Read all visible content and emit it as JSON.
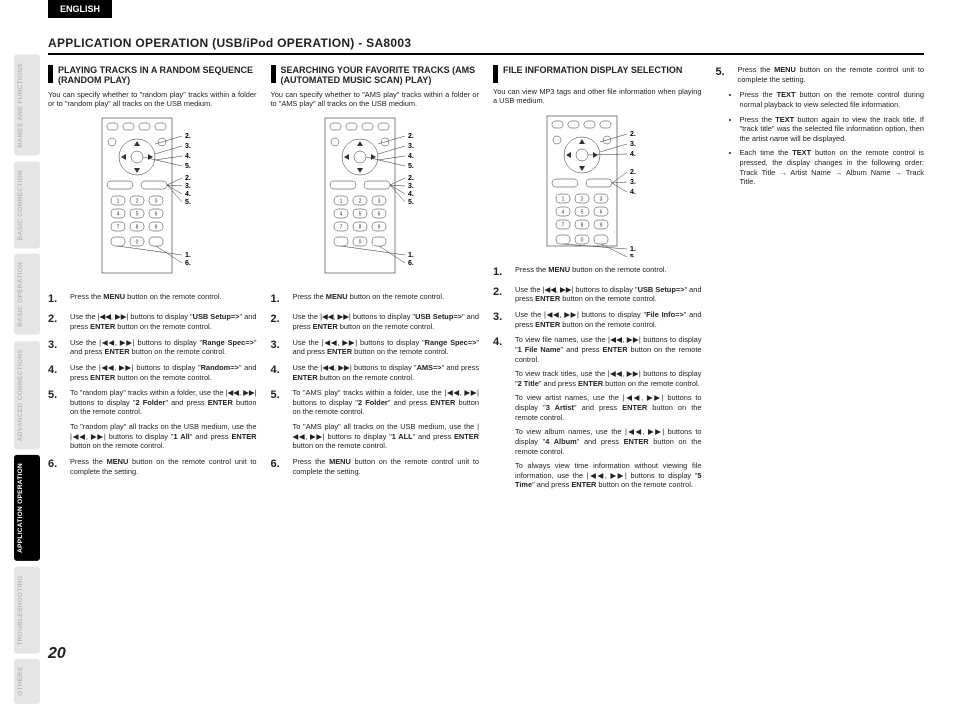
{
  "lang": "ENGLISH",
  "pageNum": "20",
  "sidebar": [
    {
      "label": "NAMES AND FUNCTIONS",
      "active": false
    },
    {
      "label": "BASIC CONNECTION",
      "active": false
    },
    {
      "label": "BASIC OPERATION",
      "active": false
    },
    {
      "label": "ADVANCED CONNECTIONS",
      "active": false
    },
    {
      "label": "APPLICATION OPERATION",
      "active": true
    },
    {
      "label": "TROUBLESHOOTING",
      "active": false
    },
    {
      "label": "OTHERS",
      "active": false
    }
  ],
  "title": "APPLICATION OPERATION (USB/iPod OPERATION) - SA8003",
  "col1": {
    "heading": "PLAYING TRACKS IN A RANDOM SEQUENCE (RANDOM PLAY)",
    "intro": "You can specify whether to \"random play\" tracks within a folder or to \"random play\" all tracks on the USB medium.",
    "remoteLabels": [
      "2.",
      "3.",
      "4.",
      "5.",
      "2.",
      "3.",
      "4.",
      "5.",
      "1.",
      "6."
    ],
    "steps": [
      {
        "n": "1.",
        "t": "Press the <b>MENU</b> button on the remote control."
      },
      {
        "n": "2.",
        "t": "Use the <span class='icon-nav'>|◀◀</span>, <span class='icon-nav'>▶▶|</span> buttons to display \"<b>USB Setup=></b>\" and press <b>ENTER</b> button on the remote control."
      },
      {
        "n": "3.",
        "t": "Use the <span class='icon-nav'>|◀◀</span>, <span class='icon-nav'>▶▶|</span> buttons to display \"<b>Range Spec=></b>\" and press <b>ENTER</b> button on the remote control."
      },
      {
        "n": "4.",
        "t": "Use the <span class='icon-nav'>|◀◀</span>, <span class='icon-nav'>▶▶|</span> buttons to display \"<b>Random=></b>\" and press <b>ENTER</b> button on the remote control."
      },
      {
        "n": "5.",
        "t": "To \"random play\" tracks within a folder, use the <span class='icon-nav'>|◀◀</span>, <span class='icon-nav'>▶▶|</span> buttons to display \"<b>2 Folder</b>\" and press <b>ENTER</b> button on the remote control.<div class='sub-para'>To \"random play\" all tracks on the USB medium, use the <span class='icon-nav'>|◀◀</span>, <span class='icon-nav'>▶▶|</span> buttons to display \"<b>1 All</b>\" and press <b>ENTER</b> button on the remote control.</div>"
      },
      {
        "n": "6.",
        "t": "Press the <b>MENU</b> button on the remote control unit to complete the setting."
      }
    ]
  },
  "col2": {
    "heading": "SEARCHING YOUR FAVORITE TRACKS (AMS (AUTOMATED MUSIC SCAN) PLAY)",
    "intro": "You can specify whether to \"AMS play\" tracks within a folder or to \"AMS play\" all tracks on the USB medium.",
    "remoteLabels": [
      "2.",
      "3.",
      "4.",
      "5.",
      "2.",
      "3.",
      "4.",
      "5.",
      "1.",
      "6."
    ],
    "steps": [
      {
        "n": "1.",
        "t": "Press the <b>MENU</b> button on the remote control."
      },
      {
        "n": "2.",
        "t": "Use the <span class='icon-nav'>|◀◀</span>, <span class='icon-nav'>▶▶|</span> buttons to display \"<b>USB Setup=></b>\" and press <b>ENTER</b> button on the remote control."
      },
      {
        "n": "3.",
        "t": "Use the <span class='icon-nav'>|◀◀</span>, <span class='icon-nav'>▶▶|</span> buttons to display \"<b>Range Spec=></b>\" and press <b>ENTER</b> button on the remote control."
      },
      {
        "n": "4.",
        "t": "Use the <span class='icon-nav'>|◀◀</span>, <span class='icon-nav'>▶▶|</span> buttons to display \"<b>AMS=></b>\" and press <b>ENTER</b> button on the remote control."
      },
      {
        "n": "5.",
        "t": "To \"AMS play\" tracks within a folder, use the <span class='icon-nav'>|◀◀</span>, <span class='icon-nav'>▶▶|</span> buttons to display \"<b>2 Folder</b>\" and press <b>ENTER</b> button on the remote control.<div class='sub-para'>To \"AMS play\" all tracks on the USB medium, use the <span class='icon-nav'>|◀◀</span>, <span class='icon-nav'>▶▶|</span> buttons to display \"<b>1 ALL</b>\" and press <b>ENTER</b> button on the remote control.</div>"
      },
      {
        "n": "6.",
        "t": "Press the <b>MENU</b> button on the remote control unit to complete the setting."
      }
    ]
  },
  "col3": {
    "heading": "FILE INFORMATION DISPLAY SELECTION",
    "intro": "You can view MP3 tags and other file information when playing a USB medium.",
    "remoteLabels": [
      "2.",
      "3.",
      "4.",
      "2.",
      "3.",
      "4.",
      "1.",
      "5."
    ],
    "steps": [
      {
        "n": "1.",
        "t": "Press the <b>MENU</b> button on the remote control."
      },
      {
        "n": "2.",
        "t": "Use the <span class='icon-nav'>|◀◀</span>, <span class='icon-nav'>▶▶|</span> buttons to display \"<b>USB Setup=></b>\" and press <b>ENTER</b> button on the remote control."
      },
      {
        "n": "3.",
        "t": "Use the <span class='icon-nav'>|◀◀</span>, <span class='icon-nav'>▶▶|</span> buttons to display \"<b>File Info=></b>\" and press <b>ENTER</b> button on the remote control."
      },
      {
        "n": "4.",
        "t": "To view file names, use the <span class='icon-nav'>|◀◀</span>, <span class='icon-nav'>▶▶|</span> buttons to display \"<b>1 File Name</b>\" and press <b>ENTER</b> button on the remote control.<div class='sub-para'>To view track titles, use the <span class='icon-nav'>|◀◀</span>, <span class='icon-nav'>▶▶|</span> buttons to display \"<b>2 Title</b>\" and press <b>ENTER</b> button on the remote control.</div><div class='sub-para'>To view artist names, use the <span class='icon-nav'>|◀◀</span>, <span class='icon-nav'>▶▶|</span> buttons to display \"<b>3 Artist</b>\" and press <b>ENTER</b> button on the remote control.</div><div class='sub-para'>To view album names, use the <span class='icon-nav'>|◀◀</span>, <span class='icon-nav'>▶▶|</span> buttons to display \"<b>4 Album</b>\" and press <b>ENTER</b> button on the remote control.</div><div class='sub-para'>To always view time information without viewing file information, use the <span class='icon-nav'>|◀◀</span>, <span class='icon-nav'>▶▶|</span> buttons to display \"<b>5 Time</b>\" and press <b>ENTER</b> button on the remote control.</div>"
      }
    ]
  },
  "col4": {
    "step5": "Press the <b>MENU</b> button on the remote control unit to complete the setting.",
    "bullets": [
      "Press the <b>TEXT</b> button on the remote control during normal playback to view selected file information.",
      "Press the <b>TEXT</b> button again to view the track title. If \"track title\" was the selected file information option, then the artist name will be displayed.",
      "Each time the <b>TEXT</b> button on the remote control is pressed, the display changes in the following order: Track Title → Artist Name → Album Name → Track Title."
    ]
  }
}
